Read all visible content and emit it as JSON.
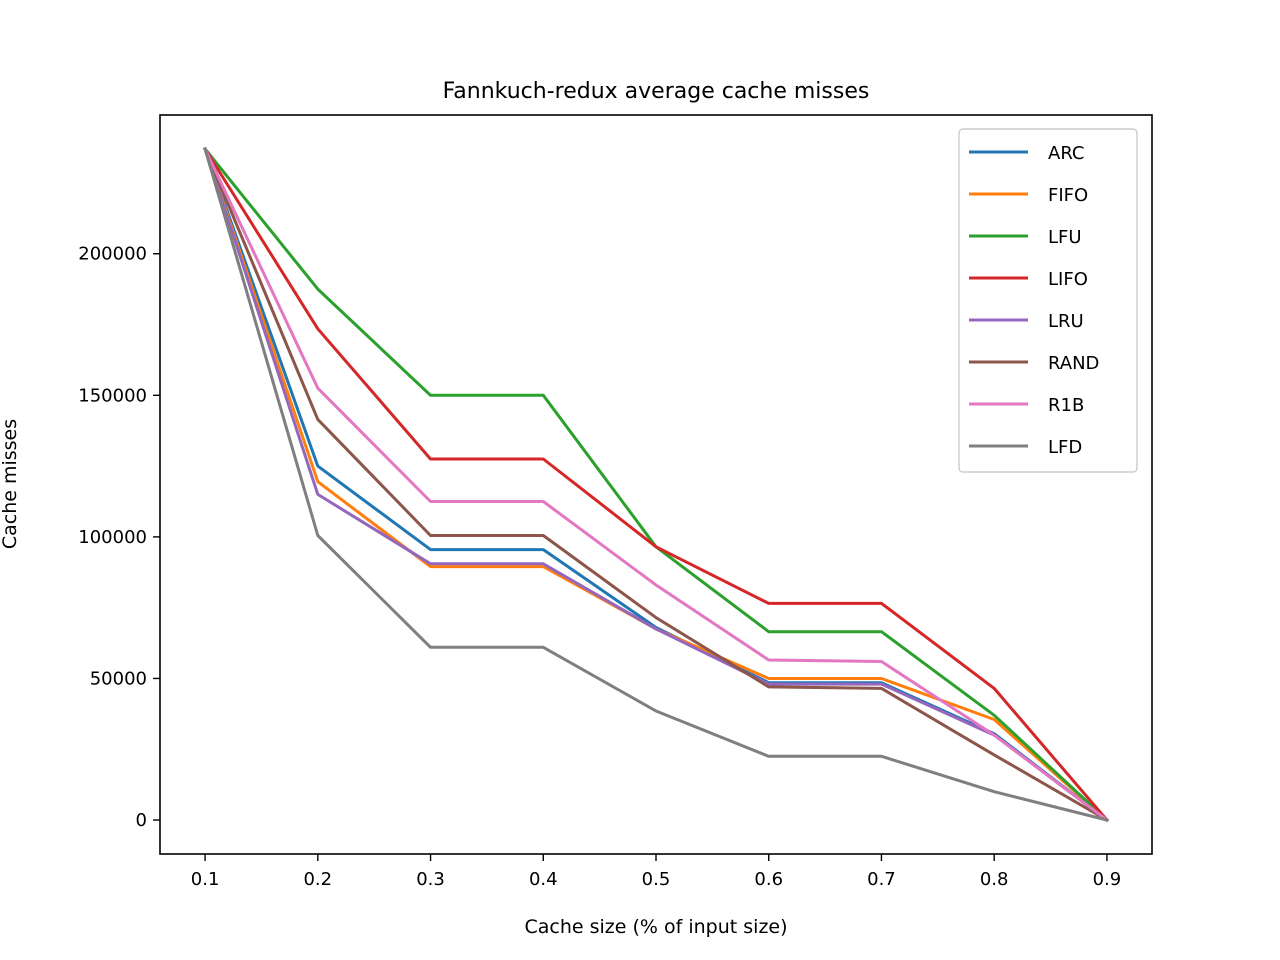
{
  "chart_data": {
    "type": "line",
    "title": "Fannkuch-redux average cache misses",
    "xlabel": "Cache size (% of input size)",
    "ylabel": "Cache misses",
    "x": [
      0.1,
      0.2,
      0.3,
      0.4,
      0.5,
      0.6,
      0.7,
      0.8,
      0.9
    ],
    "x_ticks": [
      "0.1",
      "0.2",
      "0.3",
      "0.4",
      "0.5",
      "0.6",
      "0.7",
      "0.8",
      "0.9"
    ],
    "y_ticks": [
      "0",
      "50000",
      "100000",
      "150000",
      "200000"
    ],
    "xlim": [
      0.06,
      0.94
    ],
    "ylim": [
      -12000,
      249000
    ],
    "grid": false,
    "legend_position": "upper-right",
    "series": [
      {
        "name": "ARC",
        "color": "#1f77b4",
        "values": [
          237000,
          125000,
          95500,
          95500,
          68000,
          48500,
          48500,
          30500,
          0
        ]
      },
      {
        "name": "FIFO",
        "color": "#ff7f0e",
        "values": [
          237000,
          119500,
          89500,
          89500,
          67500,
          50000,
          50000,
          35500,
          0
        ]
      },
      {
        "name": "LFU",
        "color": "#2ca02c",
        "values": [
          237000,
          187500,
          150000,
          150000,
          96500,
          66500,
          66500,
          37000,
          0
        ]
      },
      {
        "name": "LIFO",
        "color": "#d62728",
        "values": [
          237000,
          173500,
          127500,
          127500,
          96500,
          76500,
          76500,
          46500,
          0
        ]
      },
      {
        "name": "LRU",
        "color": "#9467bd",
        "values": [
          237000,
          115000,
          90500,
          90500,
          67500,
          48000,
          48000,
          30000,
          0
        ]
      },
      {
        "name": "RAND",
        "color": "#8c564b",
        "values": [
          237000,
          141500,
          100500,
          100500,
          71500,
          47000,
          46500,
          23000,
          0
        ]
      },
      {
        "name": "R1B",
        "color": "#e377c2",
        "values": [
          237000,
          152500,
          112500,
          112500,
          83000,
          56500,
          56000,
          30000,
          0
        ]
      },
      {
        "name": "LFD",
        "color": "#7f7f7f",
        "values": [
          237000,
          100500,
          61000,
          61000,
          38500,
          22500,
          22500,
          10000,
          0
        ]
      }
    ]
  }
}
